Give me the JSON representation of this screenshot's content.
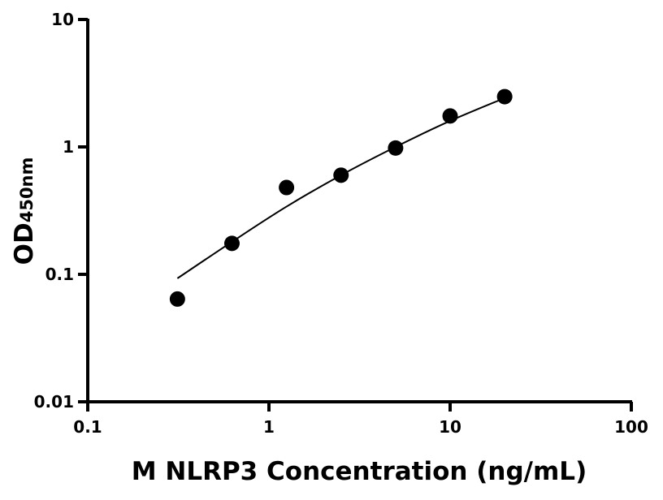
{
  "chart_data": {
    "type": "scatter",
    "title": "",
    "xlabel": "M NLRP3 Concentration (ng/mL)",
    "ylabel": "OD",
    "ylabel_subscript": "450nm",
    "xscale": "log",
    "yscale": "log",
    "xlim": [
      0.1,
      100
    ],
    "ylim": [
      0.01,
      10
    ],
    "xticks": [
      0.1,
      1,
      10,
      100
    ],
    "xtick_labels": [
      "0.1",
      "1",
      "10",
      "100"
    ],
    "yticks": [
      0.01,
      0.1,
      1,
      10
    ],
    "ytick_labels": [
      "0.01",
      "0.1",
      "1",
      "10"
    ],
    "grid": false,
    "points": {
      "x": [
        0.3125,
        0.625,
        1.25,
        2.5,
        5,
        10,
        20
      ],
      "y": [
        0.064,
        0.175,
        0.48,
        0.6,
        0.98,
        1.75,
        2.48
      ]
    },
    "fit_curve": {
      "x": [
        0.3125,
        0.625,
        1.25,
        2.5,
        5,
        10,
        20
      ],
      "y": [
        0.093,
        0.18,
        0.34,
        0.6,
        1.0,
        1.6,
        2.42
      ]
    },
    "colors": {
      "points": "#000000",
      "curve": "#000000"
    }
  }
}
